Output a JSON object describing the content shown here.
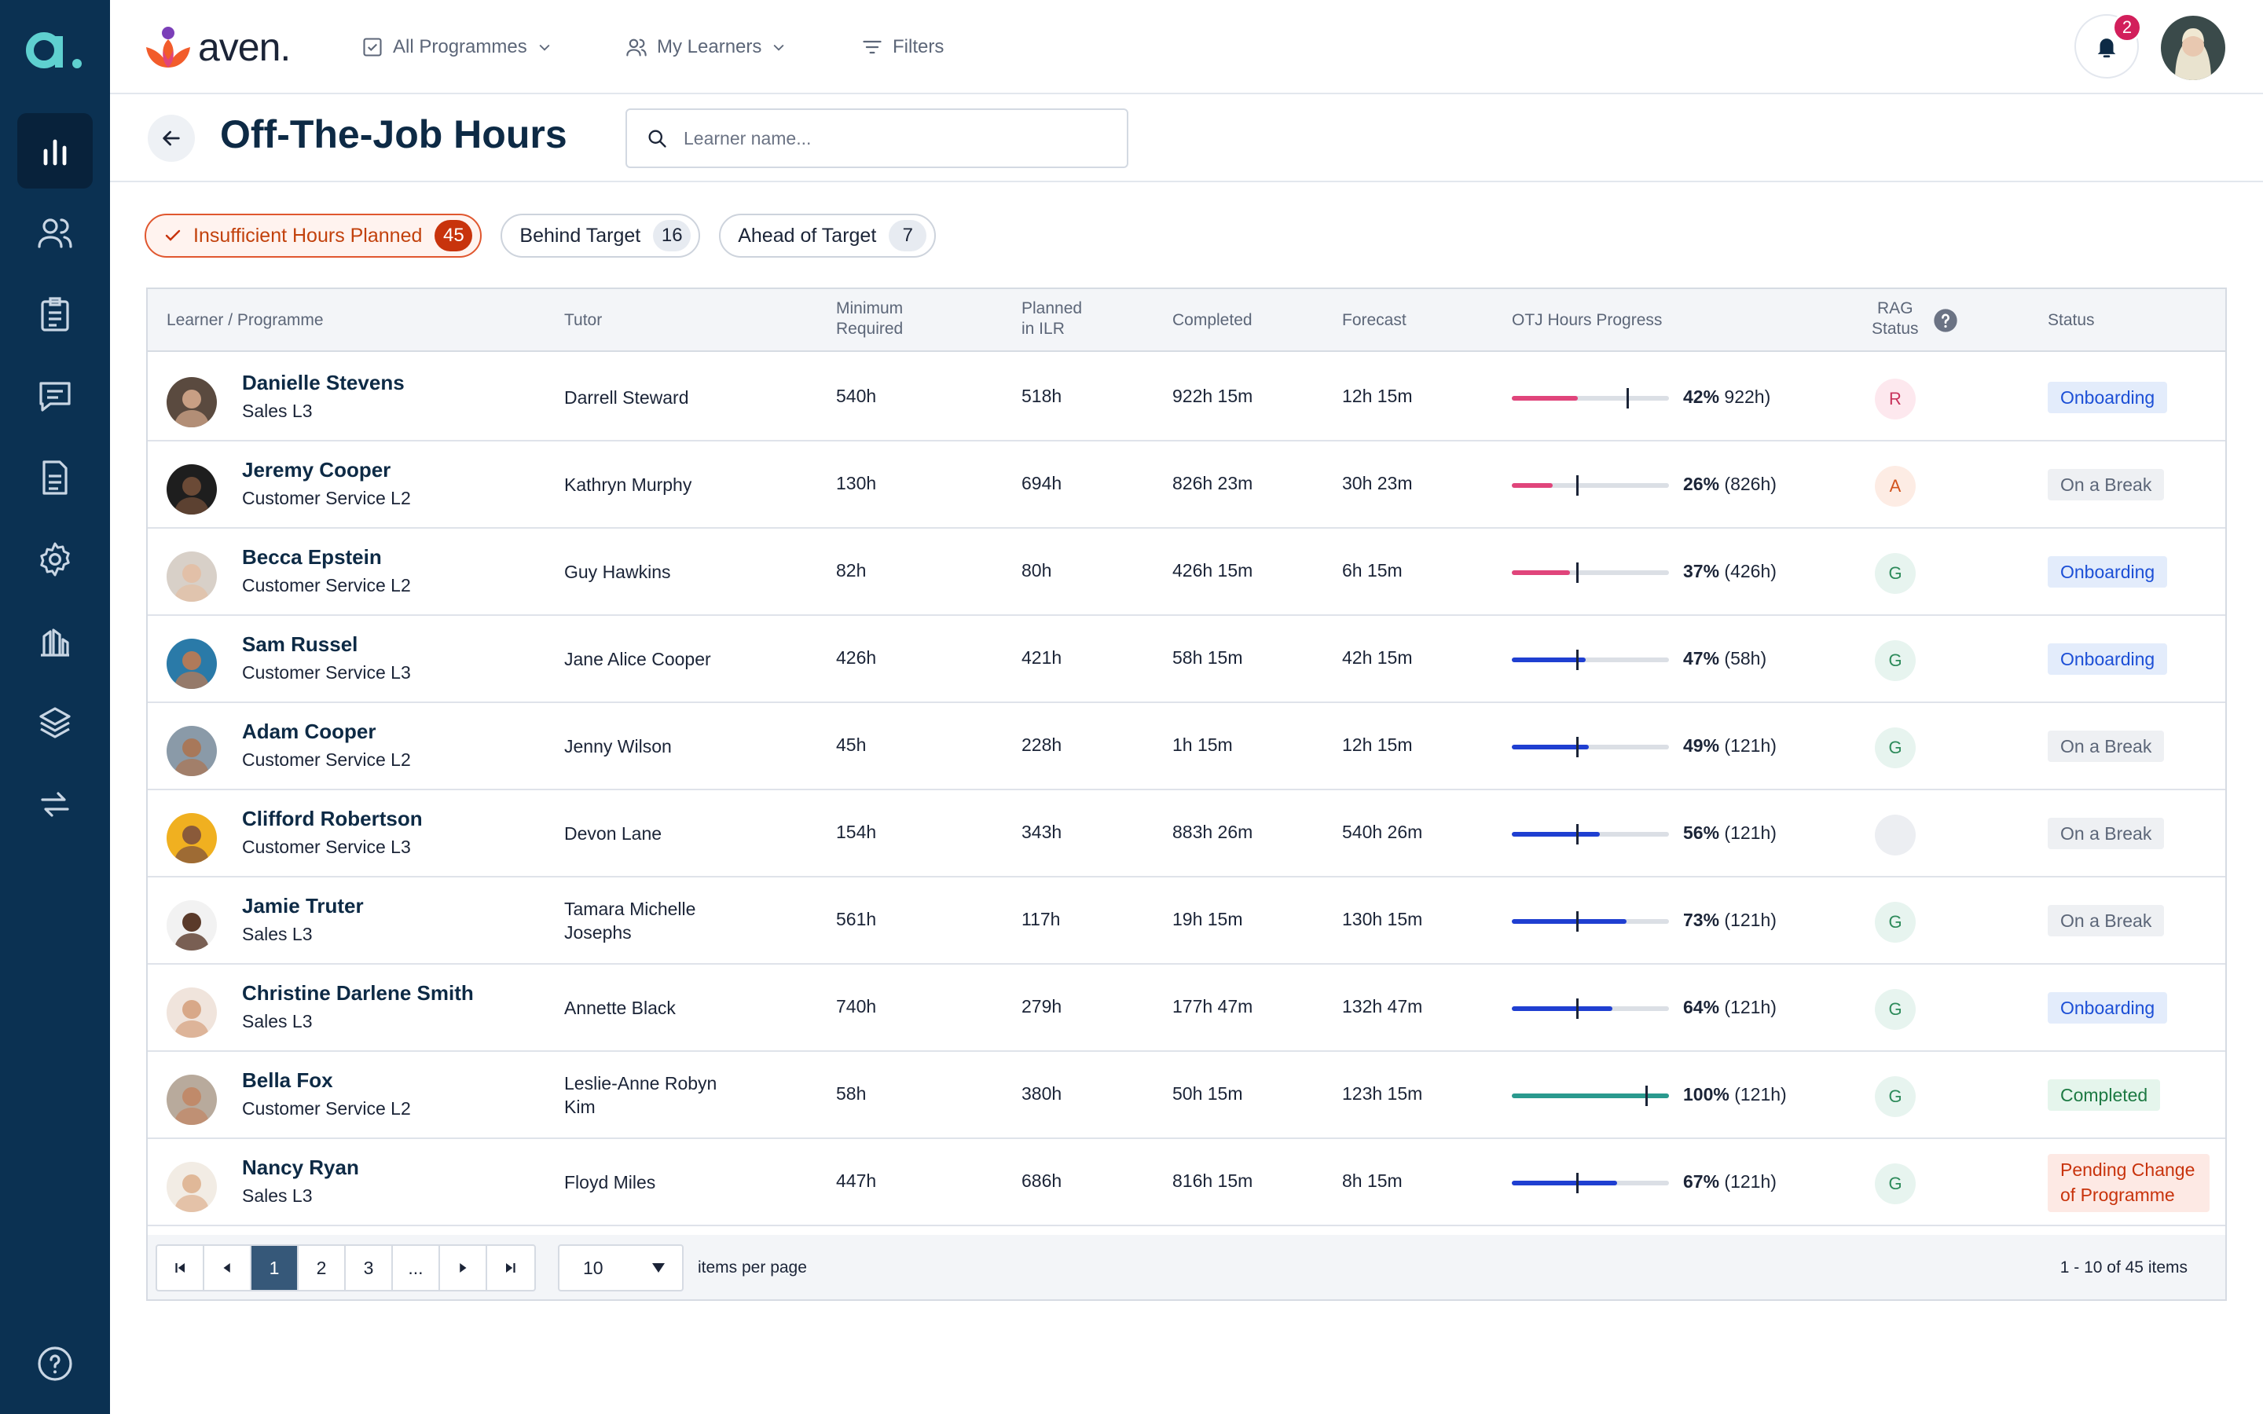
{
  "app": {
    "brand": "aven.",
    "sidebar_logo": "a."
  },
  "topbar": {
    "programmes_label": "All Programmes",
    "learners_label": "My Learners",
    "filters_label": "Filters",
    "notification_count": "2"
  },
  "page": {
    "title": "Off-The-Job Hours",
    "search_placeholder": "Learner name..."
  },
  "chips": [
    {
      "label": "Insufficient Hours Planned",
      "count": "45"
    },
    {
      "label": "Behind Target",
      "count": "16"
    },
    {
      "label": "Ahead of Target",
      "count": "7"
    }
  ],
  "columns": {
    "learner": "Learner / Programme",
    "tutor": "Tutor",
    "min_1": "Minimum",
    "min_2": "Required",
    "planned_1": "Planned",
    "planned_2": "in ILR",
    "completed": "Completed",
    "forecast": "Forecast",
    "progress": "OTJ Hours Progress",
    "rag_1": "RAG",
    "rag_2": "Status",
    "status": "Status"
  },
  "rows": [
    {
      "name": "Danielle Stevens",
      "programme": "Sales L3",
      "tutor": "Darrell Steward",
      "min": "540h",
      "planned": "518h",
      "completed": "922h 15m",
      "forecast": "12h 15m",
      "pct": "42%",
      "pct_hours": " 922h)",
      "progress": 0.42,
      "target": 0.73,
      "bar_color": "#e0457b",
      "rag": "R",
      "status": "Onboarding",
      "status_type": "onboarding"
    },
    {
      "name": "Jeremy Cooper",
      "programme": "Customer Service L2",
      "tutor": "Kathryn Murphy",
      "min": "130h",
      "planned": "694h",
      "completed": "826h 23m",
      "forecast": "30h 23m",
      "pct": "26%",
      "pct_hours": " (826h)",
      "progress": 0.26,
      "target": 0.41,
      "bar_color": "#e0457b",
      "rag": "A",
      "status": "On a Break",
      "status_type": "break"
    },
    {
      "name": "Becca Epstein",
      "programme": "Customer Service L2",
      "tutor": "Guy Hawkins",
      "min": "82h",
      "planned": "80h",
      "completed": "426h 15m",
      "forecast": "6h 15m",
      "pct": "37%",
      "pct_hours": " (426h)",
      "progress": 0.37,
      "target": 0.41,
      "bar_color": "#e0457b",
      "rag": "G",
      "status": "Onboarding",
      "status_type": "onboarding"
    },
    {
      "name": "Sam Russel",
      "programme": "Customer Service L3",
      "tutor": "Jane Alice Cooper",
      "min": "426h",
      "planned": "421h",
      "completed": "58h 15m",
      "forecast": "42h 15m",
      "pct": "47%",
      "pct_hours": " (58h)",
      "progress": 0.47,
      "target": 0.41,
      "bar_color": "#1f3fd1",
      "rag": "G",
      "status": "Onboarding",
      "status_type": "onboarding"
    },
    {
      "name": "Adam Cooper",
      "programme": "Customer Service L2",
      "tutor": "Jenny Wilson",
      "min": "45h",
      "planned": "228h",
      "completed": "1h 15m",
      "forecast": "12h 15m",
      "pct": "49%",
      "pct_hours": " (121h)",
      "progress": 0.49,
      "target": 0.41,
      "bar_color": "#1f3fd1",
      "rag": "G",
      "status": "On a Break",
      "status_type": "break"
    },
    {
      "name": "Clifford Robertson",
      "programme": "Customer Service L3",
      "tutor": "Devon Lane",
      "min": "154h",
      "planned": "343h",
      "completed": "883h 26m",
      "forecast": "540h 26m",
      "pct": "56%",
      "pct_hours": " (121h)",
      "progress": 0.56,
      "target": 0.41,
      "bar_color": "#1f3fd1",
      "rag": "",
      "status": "On a Break",
      "status_type": "break"
    },
    {
      "name": "Jamie Truter",
      "programme": "Sales L3",
      "tutor": "Tamara Michelle Josephs",
      "min": "561h",
      "planned": "117h",
      "completed": "19h 15m",
      "forecast": "130h 15m",
      "pct": "73%",
      "pct_hours": " (121h)",
      "progress": 0.73,
      "target": 0.41,
      "bar_color": "#1f3fd1",
      "rag": "G",
      "status": "On a Break",
      "status_type": "break"
    },
    {
      "name": "Christine Darlene Smith",
      "programme": "Sales L3",
      "tutor": "Annette Black",
      "min": "740h",
      "planned": "279h",
      "completed": "177h 47m",
      "forecast": "132h 47m",
      "pct": "64%",
      "pct_hours": " (121h)",
      "progress": 0.64,
      "target": 0.41,
      "bar_color": "#1f3fd1",
      "rag": "G",
      "status": "Onboarding",
      "status_type": "onboarding"
    },
    {
      "name": "Bella Fox",
      "programme": "Customer Service L2",
      "tutor": "Leslie-Anne Robyn Kim",
      "min": "58h",
      "planned": "380h",
      "completed": "50h 15m",
      "forecast": "123h 15m",
      "pct": "100%",
      "pct_hours": " (121h)",
      "progress": 1.0,
      "target": 0.85,
      "bar_color": "#2a9a8e",
      "rag": "G",
      "status": "Completed",
      "status_type": "completed"
    },
    {
      "name": "Nancy Ryan",
      "programme": "Sales L3",
      "tutor": "Floyd Miles",
      "min": "447h",
      "planned": "686h",
      "completed": "816h 15m",
      "forecast": "8h 15m",
      "pct": "67%",
      "pct_hours": " (121h)",
      "progress": 0.67,
      "target": 0.41,
      "bar_color": "#1f3fd1",
      "rag": "G",
      "status": "Pending Change of Programme",
      "status_type": "pending"
    }
  ],
  "pagination": {
    "pages": [
      "1",
      "2",
      "3",
      "..."
    ],
    "per_page": "10",
    "per_page_label": "items per page",
    "info": "1 - 10 of 45 items"
  },
  "colors": {
    "sidebar": "#0b3152",
    "accent": "#1f3fd1",
    "warning": "#e0457b",
    "brand_orange": "#f25c2b",
    "brand_purple": "#7b3fb8"
  }
}
